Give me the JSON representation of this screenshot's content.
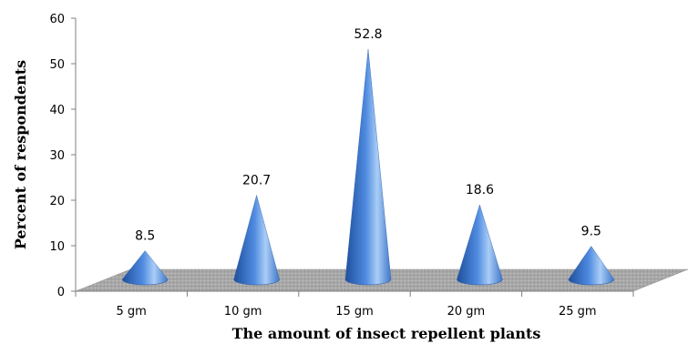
{
  "chart_data": {
    "type": "bar",
    "style": "3d-cone",
    "categories": [
      "5 gm",
      "10 gm",
      "15 gm",
      "20 gm",
      "25 gm"
    ],
    "values": [
      8.5,
      20.7,
      52.8,
      18.6,
      9.5
    ],
    "data_labels": [
      "8.5",
      "20.7",
      "52.8",
      "18.6",
      "9.5"
    ],
    "title": "",
    "xlabel": "The amount of insect repellent plants",
    "ylabel": "Percent of respondents",
    "ylim": [
      0,
      60
    ],
    "yticks": [
      0,
      10,
      20,
      30,
      40,
      50,
      60
    ],
    "ytick_labels": [
      "0",
      "10",
      "20",
      "30",
      "40",
      "50",
      "60"
    ],
    "grid": false,
    "legend": "none",
    "colors": {
      "cone_dark": "#1f4f9c",
      "cone_mid": "#4f8be0",
      "cone_light": "#a9cdf6",
      "floor": "#a7a7a7",
      "axis": "#7f7f7f"
    }
  }
}
